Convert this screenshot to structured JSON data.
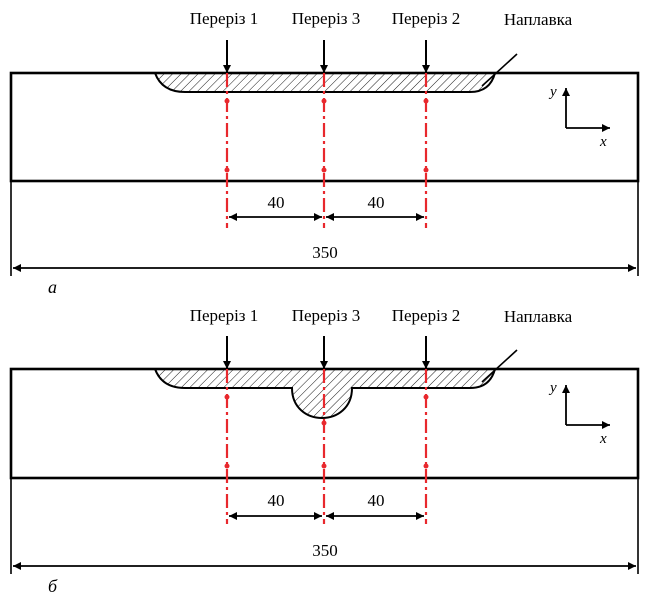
{
  "panels": [
    {
      "panel_label": "а",
      "section_labels": [
        "Переріз 1",
        "Переріз 3",
        "Переріз 2"
      ],
      "weld_label": "Наплавка",
      "dim_left": "40",
      "dim_right": "40",
      "dim_total": "350",
      "axis_y": "y",
      "axis_x": "x"
    },
    {
      "panel_label": "б",
      "section_labels": [
        "Переріз 1",
        "Переріз 3",
        "Переріз 2"
      ],
      "weld_label": "Наплавка",
      "dim_left": "40",
      "dim_right": "40",
      "dim_total": "350",
      "axis_y": "y",
      "axis_x": "x"
    }
  ],
  "colors": {
    "section_line": "#e8282d",
    "outline": "#000000"
  }
}
